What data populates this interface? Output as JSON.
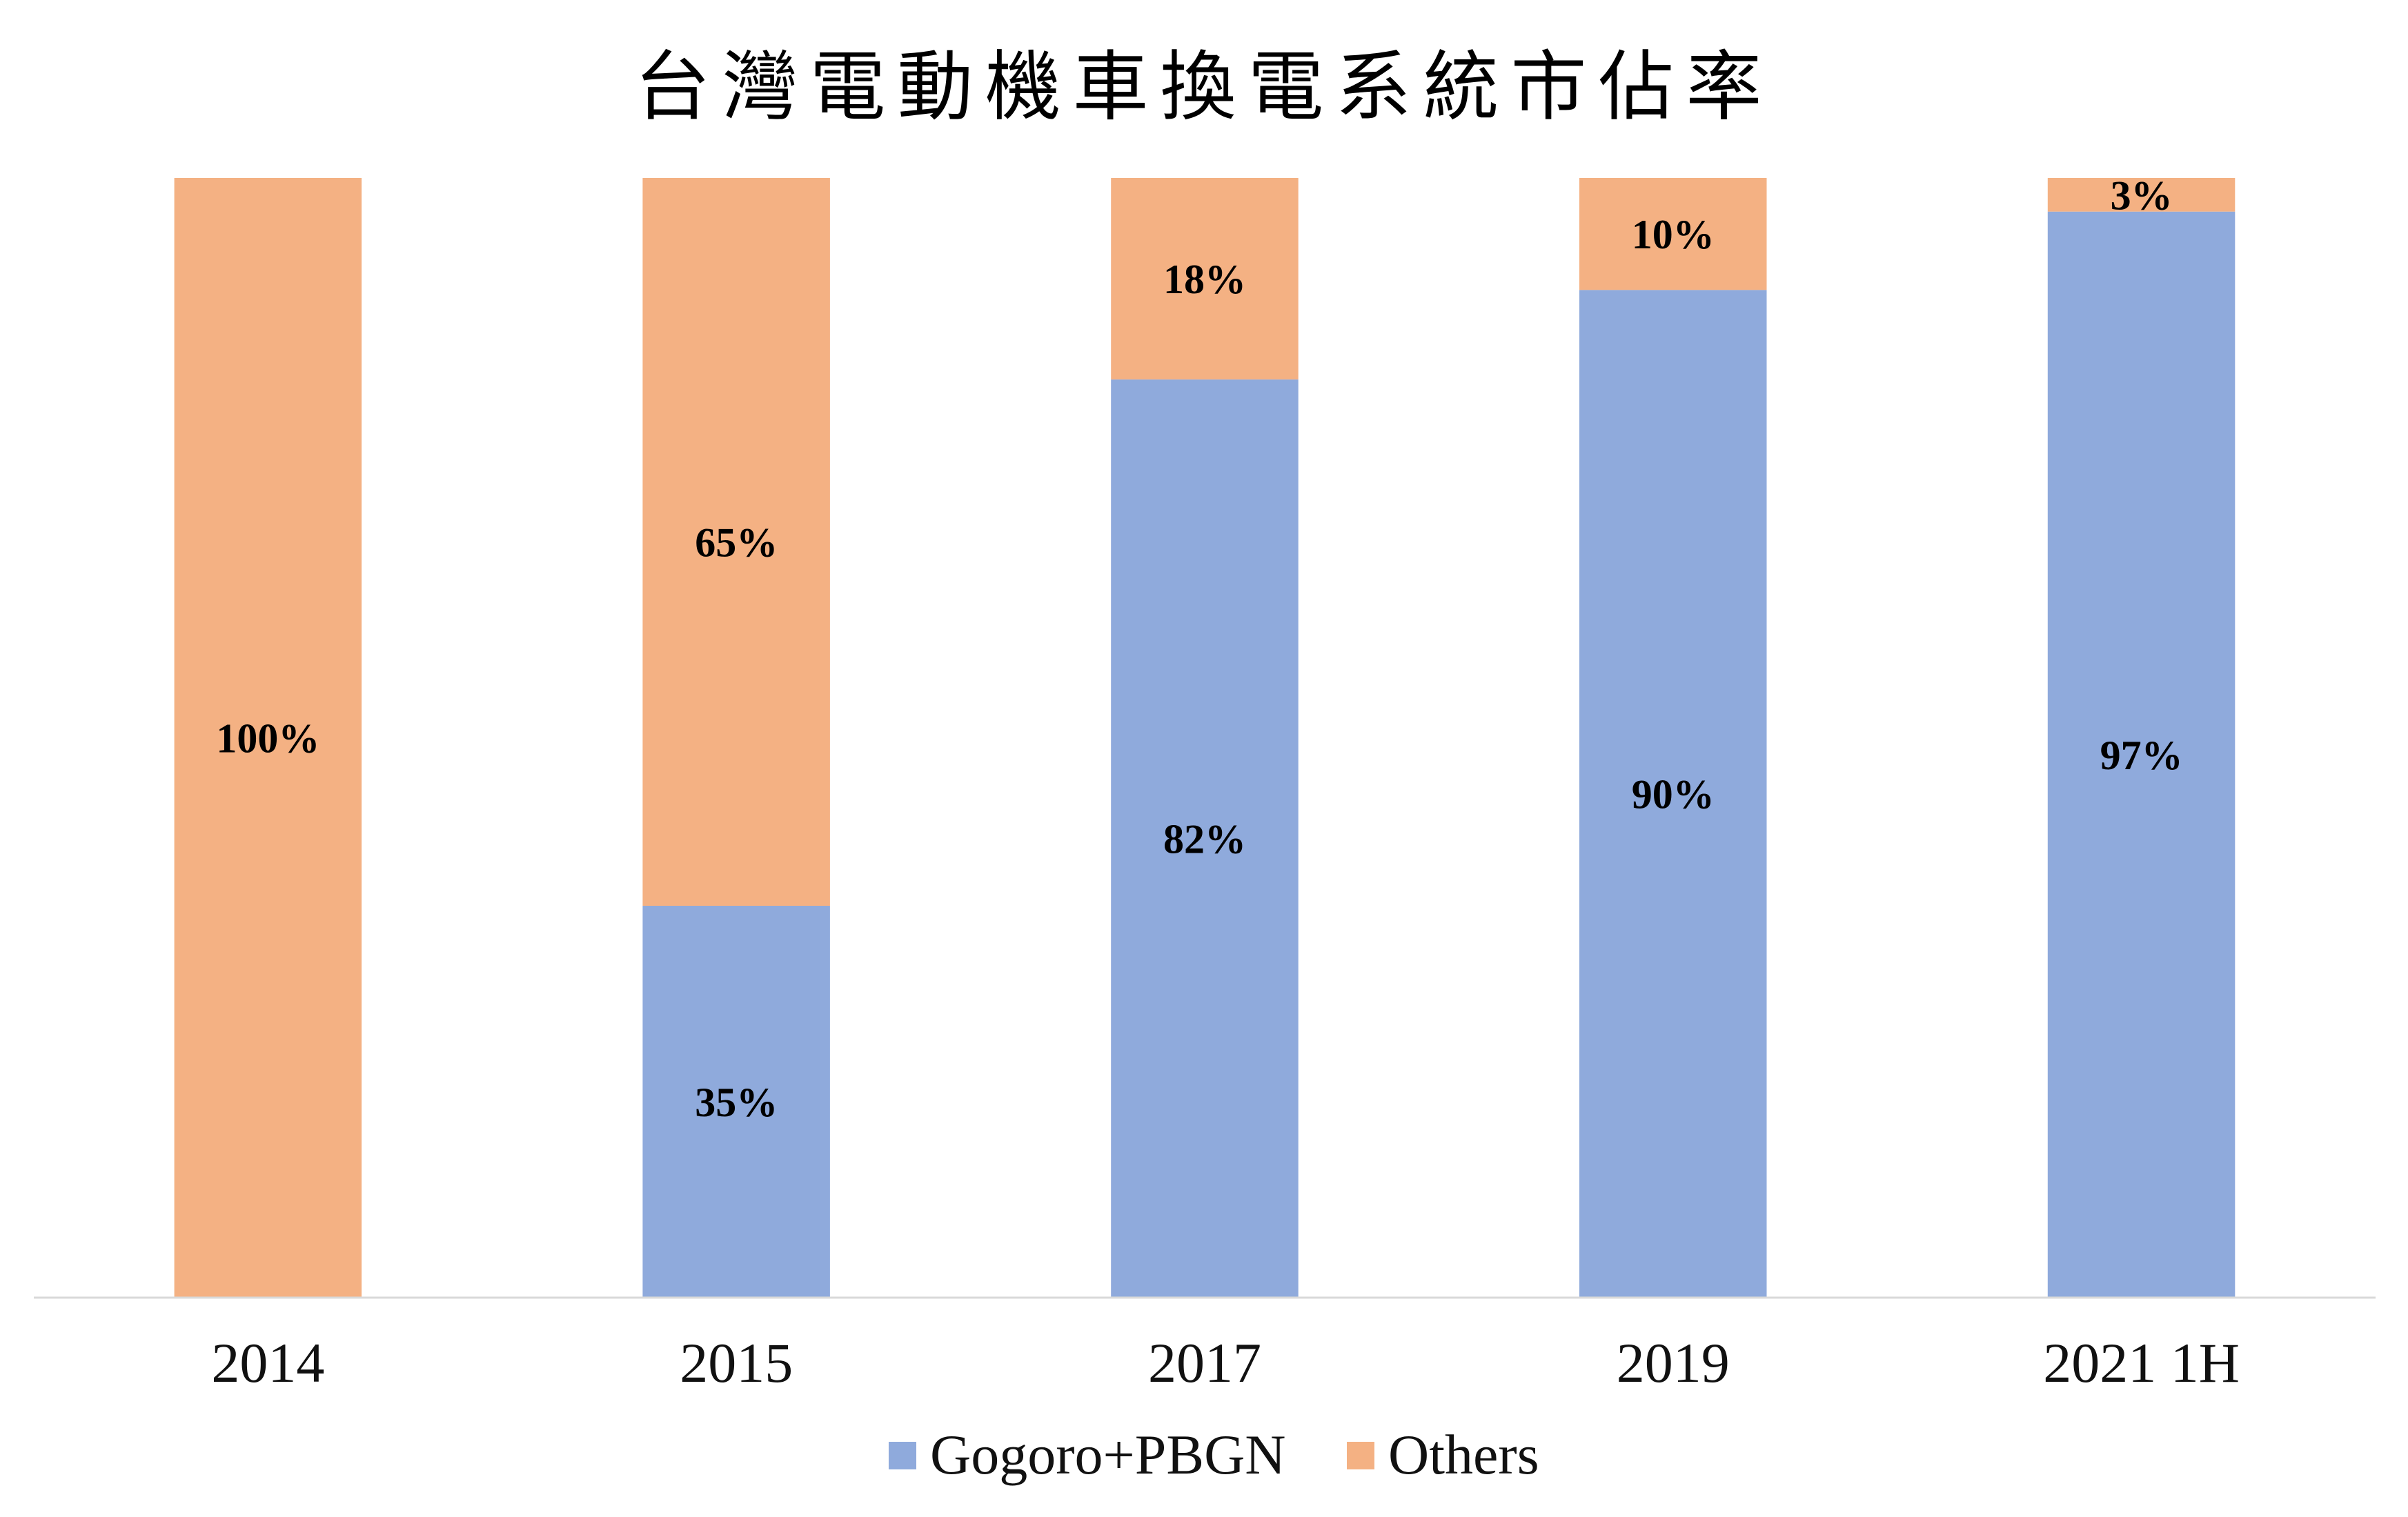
{
  "chart_data": {
    "type": "bar",
    "stacked": true,
    "title": "台灣電動機車換電系統市佔率",
    "xlabel": "",
    "ylabel": "",
    "categories": [
      "2014",
      "2015",
      "2017",
      "2019",
      "2021 1H"
    ],
    "series": [
      {
        "name": "Gogoro+PBGN",
        "values": [
          0,
          35,
          82,
          90,
          97
        ],
        "labels": [
          null,
          "35%",
          "82%",
          "90%",
          "97%"
        ],
        "color": "#8FAADC"
      },
      {
        "name": "Others",
        "values": [
          100,
          65,
          18,
          10,
          3
        ],
        "labels": [
          "100%",
          "65%",
          "18%",
          "10%",
          "3%"
        ],
        "color": "#F4B183"
      }
    ],
    "ylim": [
      0,
      100
    ],
    "y_axis_visible": false,
    "grid": false,
    "legend": {
      "position": "bottom"
    },
    "axis_color": "#D9D9D9"
  }
}
